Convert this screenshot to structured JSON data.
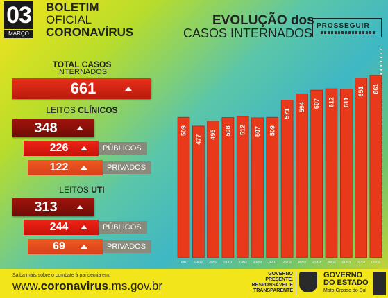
{
  "header": {
    "day": "03",
    "month": "MARÇO",
    "title_line1": "BOLETIM",
    "title_line2": "OFICIAL",
    "title_line3": "CORONAVÍRUS",
    "chart_title_line1": "EVOLUÇÃO dos",
    "chart_title_line2": "CASOS INTERNADOS",
    "logo_text": "PROSSEGUIR"
  },
  "summary": {
    "total_label_line1": "TOTAL CASOS",
    "total_label_line2": "INTERNADOS",
    "total_value": "661",
    "clinicos_label_a": "LEITOS ",
    "clinicos_label_b": "CLÍNICOS",
    "clinicos_total": "348",
    "clinicos_publicos": "226",
    "clinicos_privados": "122",
    "uti_label_a": "LEITOS ",
    "uti_label_b": "UTI",
    "uti_total": "313",
    "uti_publicos": "244",
    "uti_privados": "69",
    "publicos_label": "PÚBLICOS",
    "privados_label": "PRIVADOS"
  },
  "footer": {
    "small_text": "Saiba mais sobre o combate à pandemia em:",
    "url_prefix": "www.",
    "url_domain": "coronavirus",
    "url_suffix": ".ms.gov.br",
    "gov_line1": "GOVERNO",
    "gov_line2": "PRESENTE,",
    "gov_line3": "RESPONSÁVEL E",
    "gov_line4": "TRANSPARENTE",
    "estado_line1": "GOVERNO",
    "estado_line2": "DO ESTADO",
    "estado_line3": "Mato Grosso do Sul"
  },
  "colors": {
    "bar": "#e83a1a",
    "bar_dark": "#a81608",
    "footer": "#f2e61a"
  },
  "chart_data": {
    "type": "bar",
    "title": "EVOLUÇÃO dos CASOS INTERNADOS",
    "categories": [
      "18/02",
      "19/02",
      "20/02",
      "21/02",
      "22/02",
      "23/02",
      "24/02",
      "25/02",
      "26/02",
      "27/02",
      "28/02",
      "01/03",
      "02/03",
      "03/03"
    ],
    "values": [
      509,
      477,
      495,
      508,
      512,
      507,
      509,
      571,
      594,
      607,
      612,
      611,
      651,
      661
    ],
    "ylim": [
      0,
      700
    ],
    "grid": false
  }
}
